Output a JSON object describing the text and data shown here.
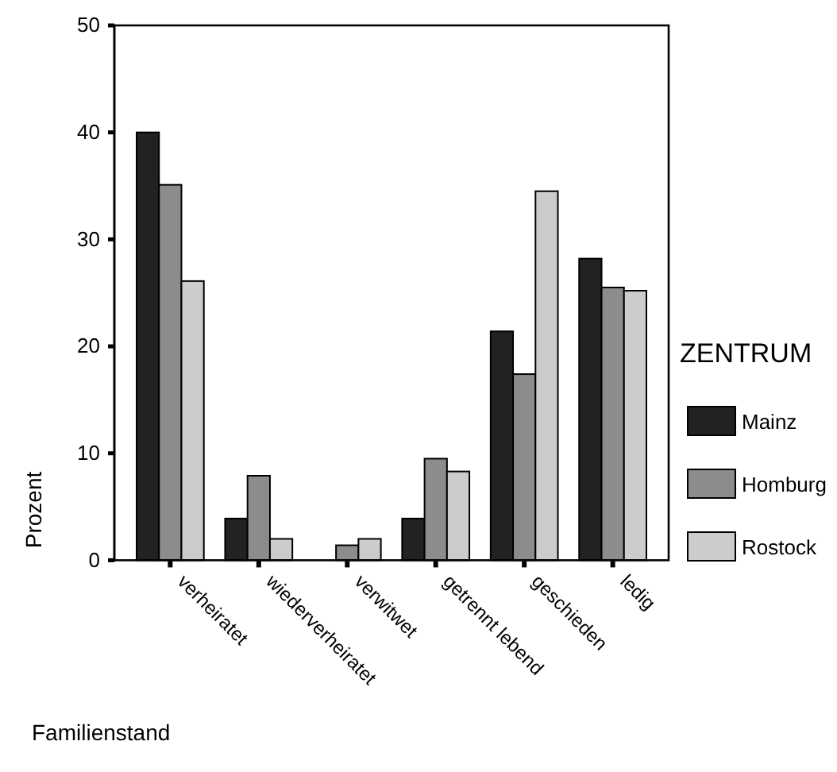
{
  "chart_data": {
    "type": "bar",
    "xlabel": "Familienstand",
    "ylabel": "Prozent",
    "legend_title": "ZENTRUM",
    "categories": [
      "verheiratet",
      "wiederverheiratet",
      "verwitwet",
      "getrennt lebend",
      "geschieden",
      "ledig"
    ],
    "series": [
      {
        "name": "Mainz",
        "color": "#222222",
        "values": [
          40.0,
          3.9,
          0,
          3.9,
          21.4,
          28.2
        ]
      },
      {
        "name": "Homburg",
        "color": "#8c8c8c",
        "values": [
          35.1,
          7.9,
          1.4,
          9.5,
          17.4,
          25.5
        ]
      },
      {
        "name": "Rostock",
        "color": "#cccccc",
        "values": [
          26.1,
          2.0,
          2.0,
          8.3,
          34.5,
          25.2
        ]
      }
    ],
    "ylim": [
      0,
      50
    ],
    "yticks": [
      0,
      10,
      20,
      30,
      40,
      50
    ],
    "grid": false,
    "legend": "right"
  }
}
